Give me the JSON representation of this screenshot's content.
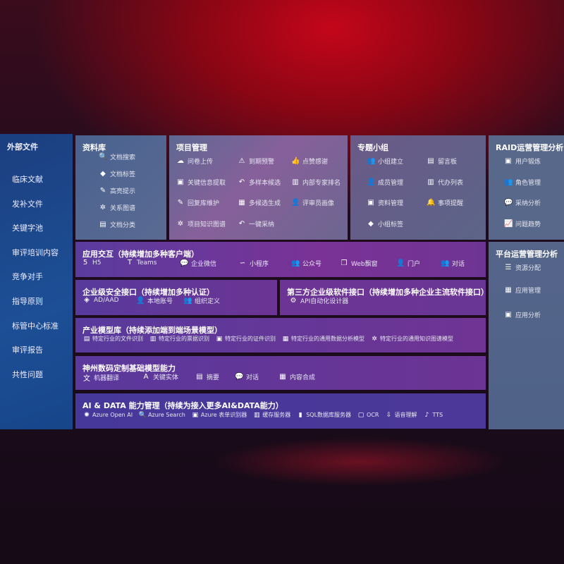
{
  "sidebar": {
    "title": "外部文件",
    "items": [
      "临床文献",
      "发补文件",
      "关键字池",
      "审评培训内容",
      "竞争对手",
      "指导原则",
      "标管中心标准",
      "审评报告",
      "共性问题"
    ]
  },
  "colors": {
    "sidebar": "#1d4a8e",
    "gray_panel": "#56688c",
    "purple_panel": "#6b3596",
    "ai_panel": "#4a3896"
  },
  "panels": {
    "library": {
      "title": "资料库",
      "items": [
        [
          "文档搜索",
          "doc-search-icon",
          "🔍"
        ],
        [
          "文档标签",
          "tag-icon",
          "◆"
        ],
        [
          "高亮提示",
          "pen-icon",
          "✎"
        ],
        [
          "关系图谱",
          "graph-icon",
          "✲"
        ],
        [
          "文档分类",
          "doc-icon",
          "▤"
        ]
      ]
    },
    "project": {
      "title": "项目管理",
      "items": [
        [
          "问卷上传",
          "upload-cloud-icon",
          "☁"
        ],
        [
          "到期预警",
          "alarm-icon",
          "⚠"
        ],
        [
          "点赞感谢",
          "thumbs-up-icon",
          "👍"
        ],
        [
          "关键信息提取",
          "card-icon",
          "▣"
        ],
        [
          "多样本候选",
          "reply-icon",
          "↶"
        ],
        [
          "内部专家排名",
          "ranking-icon",
          "▥"
        ],
        [
          "回复库维护",
          "edit-icon",
          "✎"
        ],
        [
          "多候选生成",
          "puzzle-icon",
          "▦"
        ],
        [
          "评审员画像",
          "user-icon",
          "👤"
        ],
        [
          "项目知识图谱",
          "graph-icon",
          "✲"
        ],
        [
          "一键采纳",
          "reply-icon",
          "↶"
        ]
      ]
    },
    "topic": {
      "title": "专题小组",
      "items": [
        [
          "小组建立",
          "group-icon",
          "👥"
        ],
        [
          "留言板",
          "bbs-icon",
          "▤"
        ],
        [
          "成员管理",
          "member-icon",
          "👤"
        ],
        [
          "代办列表",
          "clipboard-icon",
          "▥"
        ],
        [
          "资料管理",
          "folder-icon",
          "▣"
        ],
        [
          "事项提醒",
          "bell-icon",
          "🔔"
        ],
        [
          "小组标签",
          "tag-icon",
          "◆"
        ]
      ]
    },
    "raid": {
      "title": "RAID运营管理分析",
      "items": [
        [
          "用户锻炼",
          "id-card-icon",
          "▣"
        ],
        [
          "角色管理",
          "users-icon",
          "👥"
        ],
        [
          "采纳分析",
          "qa-icon",
          "💬"
        ],
        [
          "问题趋势",
          "trend-icon",
          "📈"
        ]
      ]
    },
    "platform": {
      "title": "平台运营管理分析",
      "items": [
        [
          "资源分配",
          "checklist-icon",
          "☰"
        ],
        [
          "应用管理",
          "apps-icon",
          "▦"
        ],
        [
          "应用分析",
          "analysis-icon",
          "▣"
        ]
      ]
    },
    "app": {
      "title": "应用交互（持续增加多种客户端）",
      "items": [
        [
          "H5",
          "html5-icon",
          "5"
        ],
        [
          "Teams",
          "teams-icon",
          "T"
        ],
        [
          "企业微信",
          "wecom-icon",
          "💬"
        ],
        [
          "小程序",
          "miniprogram-icon",
          "∽"
        ],
        [
          "公众号",
          "official-account-icon",
          "👥"
        ],
        [
          "Web飘窗",
          "window-icon",
          "❐"
        ],
        [
          "门户",
          "portal-icon",
          "👤"
        ],
        [
          "对话",
          "chat-icon",
          "👥"
        ]
      ]
    },
    "security": {
      "title": "企业级安全接口（持续增加多种认证）",
      "items": [
        [
          "AD/AAD",
          "ad-icon",
          "◈"
        ],
        [
          "本地账号",
          "account-icon",
          "👤"
        ],
        [
          "组织定义",
          "org-icon",
          "👥"
        ]
      ]
    },
    "third": {
      "title": "第三方企业级软件接口（持续增加多种企业主流软件接口）",
      "items": [
        [
          "API自动化设计器",
          "api-gear-icon",
          "⚙"
        ]
      ]
    },
    "industry": {
      "title": "产业模型库（持续添加端到端场景模型）",
      "items": [
        [
          "特定行业的文件识别",
          "file-icon",
          "▤"
        ],
        [
          "特定行业的票据识别",
          "receipt-icon",
          "▥"
        ],
        [
          "特定行业的证件识别",
          "id-card-icon",
          "▣"
        ],
        [
          "特定行业的通用数据分析模型",
          "chart-icon",
          "▦"
        ],
        [
          "特定行业的通用知识图谱模型",
          "graph-icon",
          "✲"
        ]
      ]
    },
    "base": {
      "title": "神州数码定制基础模型能力",
      "items": [
        [
          "机器翻译",
          "translate-icon",
          "文"
        ],
        [
          "关键实体",
          "entity-icon",
          "A"
        ],
        [
          "摘要",
          "summary-icon",
          "▤"
        ],
        [
          "对话",
          "chat-icon",
          "💬"
        ],
        [
          "内容合成",
          "compose-icon",
          "▦"
        ]
      ]
    },
    "ai": {
      "title": "AI & DATA 能力管理（持续为接入更多AI&DATA能力）",
      "items": [
        [
          "Azure Open AI",
          "openai-icon",
          "✺"
        ],
        [
          "Azure Search",
          "search-icon",
          "🔍"
        ],
        [
          "Azure 表单识别器",
          "form-icon",
          "▣"
        ],
        [
          "缓存服务器",
          "cache-icon",
          "▥"
        ],
        [
          "SQL数据库服务器",
          "sql-icon",
          "▮"
        ],
        [
          "OCR",
          "ocr-icon",
          "▢"
        ],
        [
          "语音理解",
          "speech-icon",
          "⇩"
        ],
        [
          "TTS",
          "tts-icon",
          "♪"
        ]
      ]
    }
  }
}
